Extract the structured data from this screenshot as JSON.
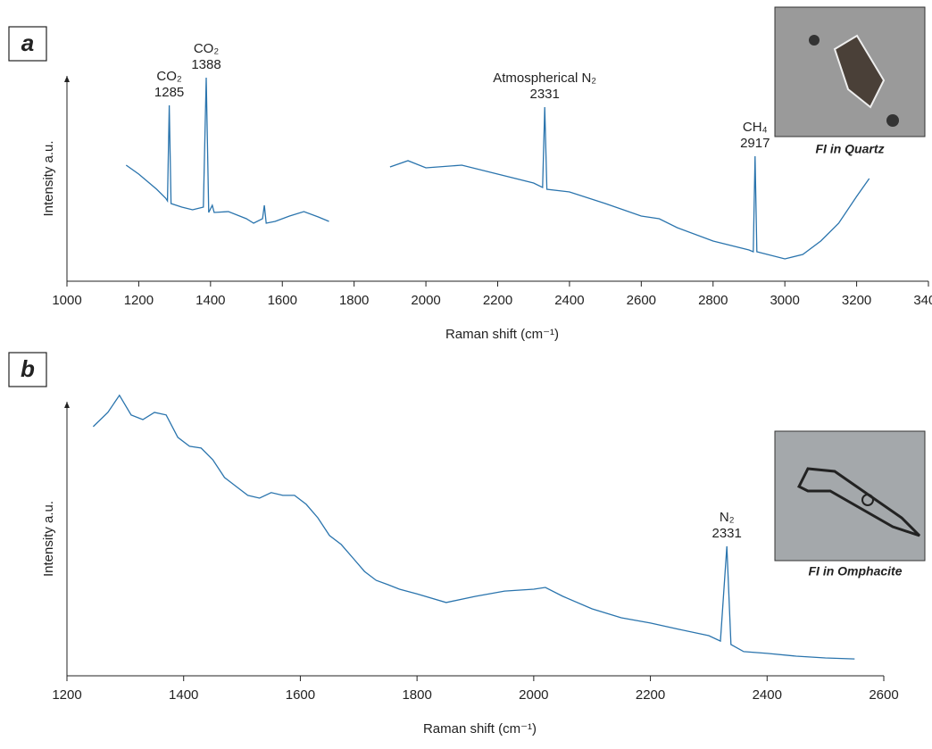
{
  "chart_data": [
    {
      "type": "line",
      "panel": "a",
      "inset_caption": "FI in Quartz",
      "xlabel": "Raman shift (cm⁻¹)",
      "ylabel": "Intensity a.u.",
      "xlim": [
        1000,
        3400
      ],
      "xticks": [
        1000,
        1200,
        1400,
        1600,
        1800,
        2000,
        2200,
        2400,
        2600,
        2800,
        3000,
        3200,
        3400
      ],
      "ylim": [
        0,
        115
      ],
      "x": [
        1165,
        1200,
        1250,
        1275,
        1280,
        1285,
        1290,
        1320,
        1350,
        1380,
        1388,
        1395,
        1405,
        1410,
        1450,
        1500,
        1520,
        1545,
        1550,
        1555,
        1580,
        1620,
        1660,
        1700,
        1730,
        1800,
        1900,
        1950,
        2000,
        2100,
        2200,
        2300,
        2325,
        2331,
        2337,
        2400,
        2500,
        2600,
        2650,
        2700,
        2800,
        2900,
        2912,
        2917,
        2922,
        3000,
        3050,
        3100,
        3150,
        3200,
        3235
      ],
      "series": [
        {
          "name": "Spectrum a",
          "color": "#2a74ad",
          "values": [
            65,
            60,
            51.5,
            46.5,
            45,
            98.5,
            43.5,
            41.5,
            40,
            41.5,
            114,
            38.5,
            42.5,
            38.5,
            39,
            35,
            32.5,
            35,
            42.5,
            32.5,
            33.5,
            36.5,
            39,
            36,
            33.5,
            null,
            64,
            67.5,
            63.5,
            65,
            60,
            55,
            52.5,
            97.5,
            51.5,
            50,
            43.5,
            36.5,
            35,
            30,
            22.5,
            17.5,
            16.5,
            70,
            16.5,
            12.5,
            15,
            22.5,
            32.5,
            47.5,
            57.5
          ]
        }
      ],
      "annotations": [
        {
          "label": "CO₂",
          "x": 1285
        },
        {
          "label": "CO₂",
          "x": 1388
        },
        {
          "label": "Atmospherical N₂",
          "x": 2331
        },
        {
          "label": "CH₄",
          "x": 2917
        }
      ]
    },
    {
      "type": "line",
      "panel": "b",
      "inset_caption": "FI in Omphacite",
      "xlabel": "Raman shift (cm⁻¹)",
      "ylabel": "Intensity a.u.",
      "xlim": [
        1200,
        2600
      ],
      "xticks": [
        1200,
        1400,
        1600,
        1800,
        2000,
        2200,
        2400,
        2600
      ],
      "ylim": [
        0,
        120
      ],
      "x": [
        1245,
        1270,
        1290,
        1310,
        1330,
        1350,
        1370,
        1390,
        1410,
        1430,
        1450,
        1470,
        1490,
        1510,
        1530,
        1550,
        1570,
        1590,
        1610,
        1630,
        1650,
        1670,
        1690,
        1710,
        1730,
        1750,
        1770,
        1800,
        1850,
        1900,
        1950,
        2000,
        2020,
        2050,
        2100,
        2150,
        2200,
        2250,
        2300,
        2320,
        2331,
        2338,
        2360,
        2400,
        2450,
        2500,
        2550
      ],
      "series": [
        {
          "name": "Spectrum b",
          "color": "#2a74ad",
          "values": [
            109.1,
            115.3,
            122.8,
            114.2,
            112.2,
            115.3,
            114.2,
            104.4,
            100.5,
            99.7,
            94.6,
            86.8,
            82.9,
            79.0,
            77.8,
            80.2,
            79.0,
            79.0,
            75.1,
            69.2,
            61.4,
            57.5,
            51.6,
            45.7,
            41.8,
            39.9,
            37.9,
            35.9,
            32.1,
            34.8,
            37.1,
            37.9,
            38.7,
            34.8,
            29.3,
            25.4,
            23.1,
            20.3,
            17.6,
            15.2,
            56.7,
            13.7,
            10.6,
            9.8,
            8.6,
            7.8,
            7.4
          ]
        }
      ],
      "annotations": [
        {
          "label": "N₂",
          "x": 2331
        }
      ]
    }
  ]
}
